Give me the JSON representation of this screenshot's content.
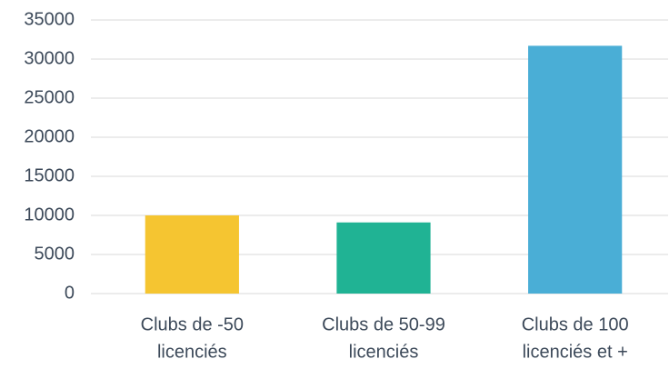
{
  "chart_data": {
    "type": "bar",
    "categories": [
      [
        "Clubs de -50",
        "licenciés"
      ],
      [
        "Clubs de 50-99",
        "licenciés"
      ],
      [
        "Clubs de 100",
        "licenciés et +"
      ]
    ],
    "values": [
      10000,
      9100,
      31700
    ],
    "colors": [
      "#f5c531",
      "#20b394",
      "#4aaed6"
    ],
    "ylim": [
      0,
      35000
    ],
    "yticks": [
      0,
      5000,
      10000,
      15000,
      20000,
      25000,
      30000,
      35000
    ],
    "grid": true
  }
}
